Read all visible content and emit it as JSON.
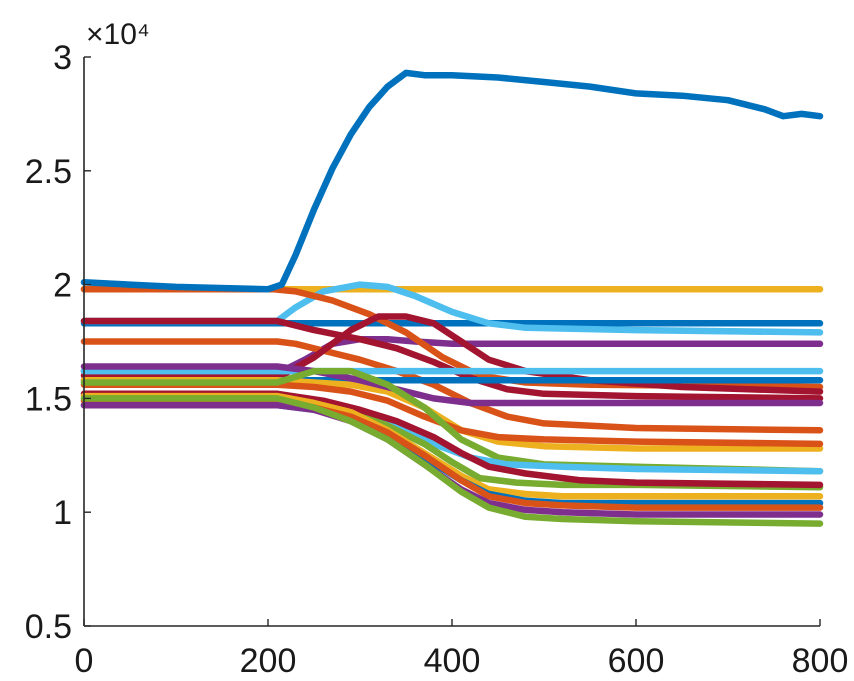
{
  "chart_data": {
    "type": "line",
    "exponent_label": "×10⁴",
    "xlim": [
      0,
      800
    ],
    "ylim": [
      0.5,
      3
    ],
    "xticks": [
      0,
      200,
      400,
      600,
      800
    ],
    "yticks": [
      0.5,
      1,
      1.5,
      2,
      2.5,
      3
    ],
    "xtick_labels": [
      "0",
      "200",
      "400",
      "600",
      "800"
    ],
    "ytick_labels": [
      "0.5",
      "1",
      "1.5",
      "2",
      "2.5",
      "3"
    ],
    "grid": false,
    "colors": [
      "#0072bd",
      "#d95319",
      "#edb120",
      "#7e2f8e",
      "#77ac30",
      "#4dbeee",
      "#a2142f"
    ],
    "series": [
      {
        "color": "#edb120",
        "x": [
          0,
          200,
          220,
          800
        ],
        "y": [
          1.98,
          1.98,
          1.98,
          1.98
        ]
      },
      {
        "color": "#0072bd",
        "x": [
          0,
          210,
          800
        ],
        "y": [
          1.83,
          1.83,
          1.83
        ]
      },
      {
        "color": "#4dbeee",
        "x": [
          0,
          210,
          230,
          260,
          300,
          330,
          360,
          400,
          440,
          480,
          600,
          800
        ],
        "y": [
          1.84,
          1.84,
          1.9,
          1.97,
          2.0,
          1.99,
          1.95,
          1.88,
          1.83,
          1.81,
          1.8,
          1.79
        ]
      },
      {
        "color": "#7e2f8e",
        "x": [
          0,
          215,
          240,
          270,
          300,
          330,
          360,
          400,
          500,
          800
        ],
        "y": [
          1.62,
          1.62,
          1.67,
          1.74,
          1.76,
          1.76,
          1.75,
          1.74,
          1.74,
          1.74
        ]
      },
      {
        "color": "#d95319",
        "x": [
          0,
          210,
          230,
          260,
          300,
          340,
          380,
          420,
          460,
          500,
          600,
          800
        ],
        "y": [
          1.75,
          1.75,
          1.74,
          1.71,
          1.67,
          1.62,
          1.56,
          1.48,
          1.42,
          1.39,
          1.37,
          1.36
        ]
      },
      {
        "color": "#d95319",
        "x": [
          0,
          205,
          230,
          270,
          310,
          350,
          390,
          430,
          480,
          550,
          800
        ],
        "y": [
          1.98,
          1.98,
          1.97,
          1.93,
          1.87,
          1.79,
          1.68,
          1.6,
          1.57,
          1.56,
          1.55
        ]
      },
      {
        "color": "#a2142f",
        "x": [
          0,
          215,
          250,
          290,
          320,
          350,
          380,
          410,
          440,
          480,
          550,
          650,
          800
        ],
        "y": [
          1.6,
          1.6,
          1.68,
          1.8,
          1.86,
          1.86,
          1.83,
          1.75,
          1.67,
          1.62,
          1.58,
          1.55,
          1.53
        ]
      },
      {
        "color": "#a2142f",
        "x": [
          0,
          210,
          250,
          300,
          340,
          380,
          420,
          460,
          500,
          600,
          800
        ],
        "y": [
          1.84,
          1.84,
          1.8,
          1.76,
          1.72,
          1.66,
          1.59,
          1.54,
          1.52,
          1.51,
          1.5
        ]
      },
      {
        "color": "#4dbeee",
        "x": [
          0,
          210,
          800
        ],
        "y": [
          1.62,
          1.62,
          1.62
        ]
      },
      {
        "color": "#0072bd",
        "x": [
          0,
          210,
          800
        ],
        "y": [
          1.58,
          1.58,
          1.58
        ]
      },
      {
        "color": "#edb120",
        "x": [
          0,
          210,
          250,
          290,
          330,
          370,
          410,
          450,
          500,
          600,
          800
        ],
        "y": [
          1.58,
          1.58,
          1.57,
          1.56,
          1.53,
          1.46,
          1.36,
          1.31,
          1.29,
          1.28,
          1.28
        ]
      },
      {
        "color": "#d95319",
        "x": [
          0,
          210,
          250,
          290,
          330,
          370,
          410,
          450,
          500,
          600,
          800
        ],
        "y": [
          1.56,
          1.56,
          1.55,
          1.53,
          1.49,
          1.42,
          1.36,
          1.33,
          1.32,
          1.31,
          1.3
        ]
      },
      {
        "color": "#7e2f8e",
        "x": [
          0,
          210,
          250,
          300,
          340,
          380,
          420,
          460,
          520,
          800
        ],
        "y": [
          1.64,
          1.64,
          1.62,
          1.58,
          1.54,
          1.5,
          1.48,
          1.48,
          1.48,
          1.48
        ]
      },
      {
        "color": "#77ac30",
        "x": [
          0,
          210,
          250,
          290,
          330,
          370,
          410,
          450,
          500,
          600,
          800
        ],
        "y": [
          1.57,
          1.57,
          1.62,
          1.62,
          1.56,
          1.46,
          1.32,
          1.24,
          1.21,
          1.2,
          1.18
        ]
      },
      {
        "color": "#4dbeee",
        "x": [
          0,
          210,
          260,
          300,
          340,
          380,
          420,
          460,
          520,
          600,
          800
        ],
        "y": [
          1.52,
          1.52,
          1.48,
          1.44,
          1.38,
          1.3,
          1.24,
          1.21,
          1.2,
          1.19,
          1.18
        ]
      },
      {
        "color": "#77ac30",
        "x": [
          0,
          210,
          250,
          290,
          330,
          370,
          400,
          430,
          470,
          520,
          600,
          800
        ],
        "y": [
          1.5,
          1.5,
          1.48,
          1.44,
          1.38,
          1.3,
          1.22,
          1.15,
          1.13,
          1.12,
          1.12,
          1.11
        ]
      },
      {
        "color": "#a2142f",
        "x": [
          0,
          210,
          260,
          300,
          340,
          380,
          410,
          440,
          480,
          540,
          600,
          800
        ],
        "y": [
          1.52,
          1.52,
          1.49,
          1.45,
          1.4,
          1.33,
          1.26,
          1.2,
          1.17,
          1.14,
          1.13,
          1.12
        ]
      },
      {
        "color": "#edb120",
        "x": [
          0,
          210,
          250,
          290,
          330,
          370,
          410,
          440,
          480,
          520,
          600,
          800
        ],
        "y": [
          1.51,
          1.51,
          1.48,
          1.44,
          1.36,
          1.26,
          1.16,
          1.1,
          1.08,
          1.07,
          1.07,
          1.07
        ]
      },
      {
        "color": "#0072bd",
        "x": [
          0,
          210,
          250,
          290,
          330,
          370,
          410,
          440,
          480,
          520,
          600,
          800
        ],
        "y": [
          1.47,
          1.47,
          1.45,
          1.41,
          1.34,
          1.24,
          1.14,
          1.08,
          1.05,
          1.04,
          1.04,
          1.04
        ]
      },
      {
        "color": "#d95319",
        "x": [
          0,
          210,
          250,
          290,
          330,
          370,
          410,
          440,
          480,
          520,
          600,
          800
        ],
        "y": [
          1.49,
          1.49,
          1.46,
          1.42,
          1.35,
          1.25,
          1.14,
          1.07,
          1.04,
          1.03,
          1.02,
          1.02
        ]
      },
      {
        "color": "#7e2f8e",
        "x": [
          0,
          210,
          250,
          290,
          330,
          370,
          410,
          440,
          480,
          520,
          600,
          800
        ],
        "y": [
          1.47,
          1.47,
          1.45,
          1.4,
          1.32,
          1.21,
          1.1,
          1.04,
          1.01,
          1.0,
          0.99,
          0.99
        ]
      },
      {
        "color": "#77ac30",
        "x": [
          0,
          210,
          250,
          290,
          330,
          370,
          410,
          440,
          480,
          520,
          600,
          800
        ],
        "y": [
          1.5,
          1.5,
          1.46,
          1.4,
          1.32,
          1.21,
          1.09,
          1.02,
          0.98,
          0.97,
          0.96,
          0.95
        ]
      },
      {
        "color": "#0072bd",
        "x": [
          0,
          100,
          200,
          215,
          230,
          250,
          270,
          290,
          310,
          330,
          350,
          370,
          400,
          450,
          500,
          550,
          600,
          650,
          700,
          740,
          760,
          780,
          800
        ],
        "y": [
          2.01,
          1.99,
          1.98,
          2.0,
          2.13,
          2.33,
          2.51,
          2.66,
          2.78,
          2.87,
          2.93,
          2.92,
          2.92,
          2.91,
          2.89,
          2.87,
          2.84,
          2.83,
          2.81,
          2.77,
          2.74,
          2.75,
          2.74
        ]
      }
    ]
  }
}
